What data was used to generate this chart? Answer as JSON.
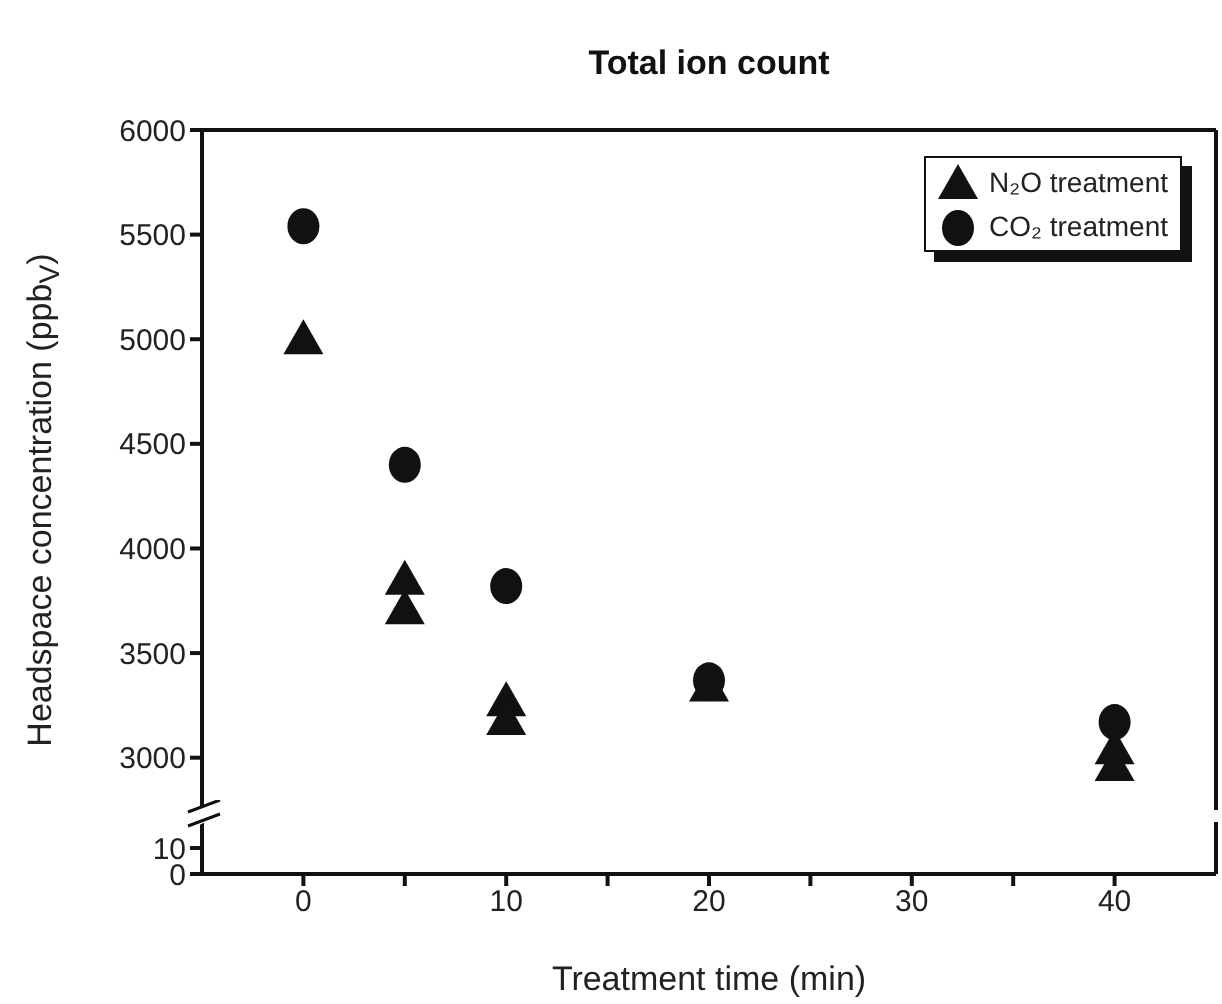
{
  "chart_data": [
    {
      "type": "scatter",
      "title": "Total ion count",
      "ylabel": "Headspace concentration (ppb$_{V}$)",
      "legend": "top right",
      "tick_labels": "y",
      "xlim": [
        -5,
        45
      ],
      "ylim": [
        2750,
        6000
      ],
      "yticks": [
        3000,
        3500,
        4000,
        4500,
        5000,
        5500,
        6000
      ],
      "series": [
        {
          "name": "N₂O treatment",
          "color": "#111111",
          "marker": "triangle",
          "x": [
            0,
            5,
            5,
            10,
            10,
            20,
            40,
            40
          ],
          "values": [
            5000,
            3850,
            3710,
            3270,
            3180,
            3340,
            3040,
            2960
          ]
        },
        {
          "name": "CO₂ treatment",
          "color": "#111111",
          "marker": "circle",
          "x": [
            0,
            5,
            10,
            20,
            40
          ],
          "values": [
            5540,
            4400,
            3820,
            3370,
            3170
          ]
        }
      ]
    },
    {
      "type": "scatter",
      "xlabel": "Treatment time (min)",
      "xlim": [
        -5,
        45
      ],
      "xticks": [
        0,
        {
          "value": 5,
          "label": null
        },
        10,
        {
          "value": 15,
          "label": null
        },
        20,
        {
          "value": 25,
          "label": null
        },
        30,
        {
          "value": 35,
          "label": null
        },
        40
      ],
      "ylim": [
        0,
        20
      ],
      "yticks": [
        0,
        10
      ]
    }
  ]
}
